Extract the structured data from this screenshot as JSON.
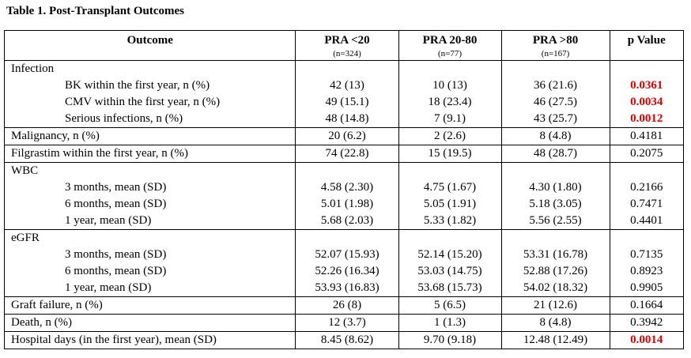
{
  "title": "Table 1. Post-Transplant Outcomes",
  "header": {
    "outcome": "Outcome",
    "col1": {
      "label": "PRA <20",
      "n": "(n=324)"
    },
    "col2": {
      "label": "PRA 20-80",
      "n": "(n=77)"
    },
    "col3": {
      "label": "PRA >80",
      "n": "(n=167)"
    },
    "pvalue": "p Value"
  },
  "sig_color": "#e00000",
  "rows": {
    "infection": {
      "label": "Infection",
      "sub": [
        {
          "label": "BK within the first year, n (%)",
          "v1": "42 (13)",
          "v2": "10 (13)",
          "v3": "36 (21.6)",
          "p": "0.0361",
          "sig": true
        },
        {
          "label": "CMV within the first year, n (%)",
          "v1": "49 (15.1)",
          "v2": "18 (23.4)",
          "v3": "46 (27.5)",
          "p": "0.0034",
          "sig": true
        },
        {
          "label": "Serious infections, n (%)",
          "v1": "48 (14.8)",
          "v2": "7 (9.1)",
          "v3": "43 (25.7)",
          "p": "0.0012",
          "sig": true
        }
      ]
    },
    "malignancy": {
      "label": "Malignancy, n (%)",
      "v1": "20 (6.2)",
      "v2": "2 (2.6)",
      "v3": "8 (4.8)",
      "p": "0.4181"
    },
    "filgrastim": {
      "label": "Filgrastim within the first year, n (%)",
      "v1": "74 (22.8)",
      "v2": "15 (19.5)",
      "v3": "48 (28.7)",
      "p": "0.2075"
    },
    "wbc": {
      "label": "WBC",
      "sub": [
        {
          "label": "3 months, mean (SD)",
          "v1": "4.58 (2.30)",
          "v2": "4.75 (1.67)",
          "v3": "4.30 (1.80)",
          "p": "0.2166"
        },
        {
          "label": "6 months, mean (SD)",
          "v1": "5.01 (1.98)",
          "v2": "5.05 (1.91)",
          "v3": "5.18 (3.05)",
          "p": "0.7471"
        },
        {
          "label": "1 year, mean (SD)",
          "v1": "5.68 (2.03)",
          "v2": "5.33 (1.82)",
          "v3": "5.56 (2.55)",
          "p": "0.4401"
        }
      ]
    },
    "egfr": {
      "label": "eGFR",
      "sub": [
        {
          "label": "3 months, mean (SD)",
          "v1": "52.07 (15.93)",
          "v2": "52.14 (15.20)",
          "v3": "53.31 (16.78)",
          "p": "0.7135"
        },
        {
          "label": "6 months, mean (SD)",
          "v1": "52.26 (16.34)",
          "v2": "53.03 (14.75)",
          "v3": "52.88 (17.26)",
          "p": "0.8923"
        },
        {
          "label": "1 year, mean (SD)",
          "v1": "53.93 (16.83)",
          "v2": "53.68 (15.73)",
          "v3": "54.02 (18.32)",
          "p": "0.9905"
        }
      ]
    },
    "graft": {
      "label": "Graft failure, n (%)",
      "v1": "26 (8)",
      "v2": "5 (6.5)",
      "v3": "21 (12.6)",
      "p": "0.1664"
    },
    "death": {
      "label": "Death, n (%)",
      "v1": "12 (3.7)",
      "v2": "1 (1.3)",
      "v3": "8 (4.8)",
      "p": "0.3942"
    },
    "hospital": {
      "label": "Hospital days (in the first year), mean (SD)",
      "v1": "8.45 (8.62)",
      "v2": "9.70 (9.18)",
      "v3": "12.48 (12.49)",
      "p": "0.0014",
      "sig": true
    }
  }
}
